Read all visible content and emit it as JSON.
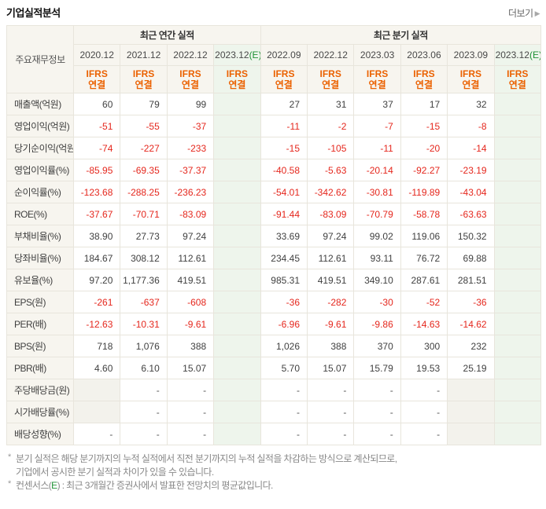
{
  "header": {
    "title": "기업실적분석",
    "more_label": "더보기",
    "more_arrow": "▶"
  },
  "colors": {
    "negative_red": "#e5271d",
    "ifrs_orange": "#eb6100",
    "estimate_green": "#1e9134",
    "estimate_bg": "#eef5ec",
    "header_beige": "#f7f5ef",
    "nodata_gray": "#f3f2ec"
  },
  "table": {
    "corner_label": "주요재무정보",
    "sections": [
      {
        "label": "최근 연간 실적",
        "span": 4
      },
      {
        "label": "최근 분기 실적",
        "span": 6
      }
    ],
    "ifrs_line1": "IFRS",
    "ifrs_line2": "연결",
    "columns": [
      {
        "period": "2020.12",
        "suffix": "",
        "estimate": false,
        "section": 0
      },
      {
        "period": "2021.12",
        "suffix": "",
        "estimate": false,
        "section": 0
      },
      {
        "period": "2022.12",
        "suffix": "",
        "estimate": false,
        "section": 0
      },
      {
        "period": "2023.12",
        "suffix": "(E)",
        "estimate": true,
        "section": 0
      },
      {
        "period": "2022.09",
        "suffix": "",
        "estimate": false,
        "section": 1
      },
      {
        "period": "2022.12",
        "suffix": "",
        "estimate": false,
        "section": 1
      },
      {
        "period": "2023.03",
        "suffix": "",
        "estimate": false,
        "section": 1
      },
      {
        "period": "2023.06",
        "suffix": "",
        "estimate": false,
        "section": 1
      },
      {
        "period": "2023.09",
        "suffix": "",
        "estimate": false,
        "section": 1
      },
      {
        "period": "2023.12",
        "suffix": "(E)",
        "estimate": true,
        "section": 1
      }
    ],
    "rows": [
      {
        "label": "매출액(억원)",
        "group_start": false,
        "values": [
          "60",
          "79",
          "99",
          "",
          "27",
          "31",
          "37",
          "17",
          "32",
          ""
        ]
      },
      {
        "label": "영업이익(억원)",
        "group_start": false,
        "values": [
          "-51",
          "-55",
          "-37",
          "",
          "-11",
          "-2",
          "-7",
          "-15",
          "-8",
          ""
        ]
      },
      {
        "label": "당기순이익(억원)",
        "group_start": false,
        "values": [
          "-74",
          "-227",
          "-233",
          "",
          "-15",
          "-105",
          "-11",
          "-20",
          "-14",
          ""
        ]
      },
      {
        "label": "영업이익률(%)",
        "group_start": true,
        "values": [
          "-85.95",
          "-69.35",
          "-37.37",
          "",
          "-40.58",
          "-5.63",
          "-20.14",
          "-92.27",
          "-23.19",
          ""
        ]
      },
      {
        "label": "순이익률(%)",
        "group_start": false,
        "values": [
          "-123.68",
          "-288.25",
          "-236.23",
          "",
          "-54.01",
          "-342.62",
          "-30.81",
          "-119.89",
          "-43.04",
          ""
        ]
      },
      {
        "label": "ROE(%)",
        "group_start": false,
        "values": [
          "-37.67",
          "-70.71",
          "-83.09",
          "",
          "-91.44",
          "-83.09",
          "-70.79",
          "-58.78",
          "-63.63",
          ""
        ]
      },
      {
        "label": "부채비율(%)",
        "group_start": true,
        "values": [
          "38.90",
          "27.73",
          "97.24",
          "",
          "33.69",
          "97.24",
          "99.02",
          "119.06",
          "150.32",
          ""
        ]
      },
      {
        "label": "당좌비율(%)",
        "group_start": false,
        "values": [
          "184.67",
          "308.12",
          "112.61",
          "",
          "234.45",
          "112.61",
          "93.11",
          "76.72",
          "69.88",
          ""
        ]
      },
      {
        "label": "유보율(%)",
        "group_start": false,
        "values": [
          "97.20",
          "1,177.36",
          "419.51",
          "",
          "985.31",
          "419.51",
          "349.10",
          "287.61",
          "281.51",
          ""
        ]
      },
      {
        "label": "EPS(원)",
        "group_start": true,
        "values": [
          "-261",
          "-637",
          "-608",
          "",
          "-36",
          "-282",
          "-30",
          "-52",
          "-36",
          ""
        ]
      },
      {
        "label": "PER(배)",
        "group_start": false,
        "values": [
          "-12.63",
          "-10.31",
          "-9.61",
          "",
          "-6.96",
          "-9.61",
          "-9.86",
          "-14.63",
          "-14.62",
          ""
        ]
      },
      {
        "label": "BPS(원)",
        "group_start": false,
        "values": [
          "718",
          "1,076",
          "388",
          "",
          "1,026",
          "388",
          "370",
          "300",
          "232",
          ""
        ]
      },
      {
        "label": "PBR(배)",
        "group_start": false,
        "values": [
          "4.60",
          "6.10",
          "15.07",
          "",
          "5.70",
          "15.07",
          "15.79",
          "19.53",
          "25.19",
          ""
        ]
      },
      {
        "label": "주당배당금(원)",
        "group_start": true,
        "values": [
          null,
          "-",
          "-",
          "",
          "-",
          "-",
          "-",
          "-",
          null,
          ""
        ]
      },
      {
        "label": "시가배당률(%)",
        "group_start": false,
        "values": [
          null,
          "-",
          "-",
          "",
          "-",
          "-",
          "-",
          "-",
          null,
          ""
        ]
      },
      {
        "label": "배당성향(%)",
        "group_start": false,
        "values": [
          "-",
          "-",
          "-",
          "",
          "-",
          "-",
          "-",
          "-",
          null,
          ""
        ]
      }
    ]
  },
  "footnotes": {
    "bullet": "*",
    "note1_line1": "분기 실적은 해당 분기까지의 누적 실적에서 직전 분기까지의 누적 실적을 차감하는 방식으로 계산되므로,",
    "note1_line2": "기업에서 공시한 분기 실적과 차이가 있을 수 있습니다.",
    "note2_prefix": "컨센서스(",
    "note2_e": "E",
    "note2_suffix": ") : 최근 3개월간 증권사에서 발표한 전망치의 평균값입니다."
  }
}
